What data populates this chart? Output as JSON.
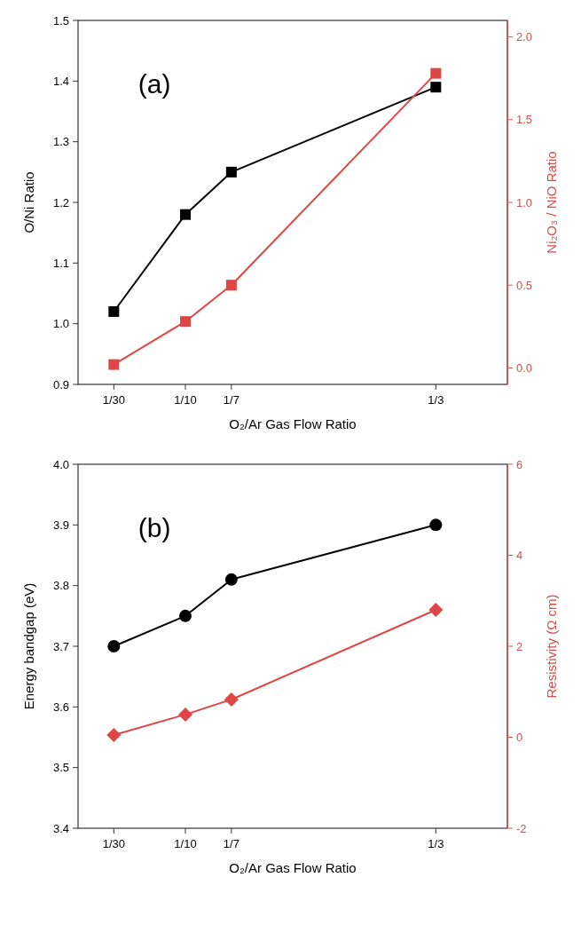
{
  "chart_data": [
    {
      "type": "line",
      "xlabel": "O₂/Ar Gas Flow Ratio",
      "ylabel": "O/Ni Ratio",
      "y2label": "Ni₂O₃ / NiO Ratio",
      "annotations": [
        "(a)"
      ],
      "xlim": [
        0,
        0.4
      ],
      "xticks": [
        {
          "value": 0.03333,
          "label": "1/30"
        },
        {
          "value": 0.1,
          "label": "1/10"
        },
        {
          "value": 0.14286,
          "label": "1/7"
        },
        {
          "value": 0.33333,
          "label": "1/3"
        }
      ],
      "ylim": [
        0.9,
        1.5
      ],
      "yticks": [
        0.9,
        {
          "value": 1,
          "label": "1.0"
        },
        1.1,
        1.2,
        1.3,
        1.4,
        1.5
      ],
      "y2lim": [
        -0.1,
        2.1
      ],
      "y2ticks": [
        {
          "value": 0,
          "label": "0.0"
        },
        0.5,
        {
          "value": 1,
          "label": "1.0"
        },
        1.5,
        {
          "value": 2,
          "label": "2.0"
        }
      ],
      "x": [
        0.03333,
        0.1,
        0.14286,
        0.33333
      ],
      "grid": false,
      "series": [
        {
          "color": "#000000",
          "marker": "square",
          "values": [
            1.02,
            1.18,
            1.25,
            1.39
          ]
        },
        {
          "color": "#e04545",
          "marker": "square",
          "axis": "y2",
          "values": [
            0.02,
            0.28,
            0.5,
            1.78
          ]
        }
      ]
    },
    {
      "type": "line",
      "xlabel": "O₂/Ar Gas Flow Ratio",
      "ylabel": "Energy bandgap (eV)",
      "y2label": "Resistivity (Ω cm)",
      "annotations": [
        "(b)"
      ],
      "xlim": [
        0,
        0.4
      ],
      "xticks": [
        {
          "value": 0.03333,
          "label": "1/30"
        },
        {
          "value": 0.1,
          "label": "1/10"
        },
        {
          "value": 0.14286,
          "label": "1/7"
        },
        {
          "value": 0.33333,
          "label": "1/3"
        }
      ],
      "ylim": [
        3.4,
        4.0
      ],
      "yticks": [
        3.4,
        3.5,
        3.6,
        3.7,
        3.8,
        3.9,
        {
          "value": 4,
          "label": "4.0"
        }
      ],
      "y2lim": [
        -2,
        6
      ],
      "y2ticks": [
        -2,
        0,
        2,
        4,
        6
      ],
      "x": [
        0.03333,
        0.1,
        0.14286,
        0.33333
      ],
      "grid": false,
      "series": [
        {
          "color": "#000000",
          "marker": "circle",
          "values": [
            3.7,
            3.75,
            3.81,
            3.9
          ]
        },
        {
          "color": "#e04545",
          "marker": "diamond",
          "axis": "y2",
          "values": [
            0.05,
            0.5,
            0.83,
            2.8
          ]
        }
      ]
    }
  ]
}
